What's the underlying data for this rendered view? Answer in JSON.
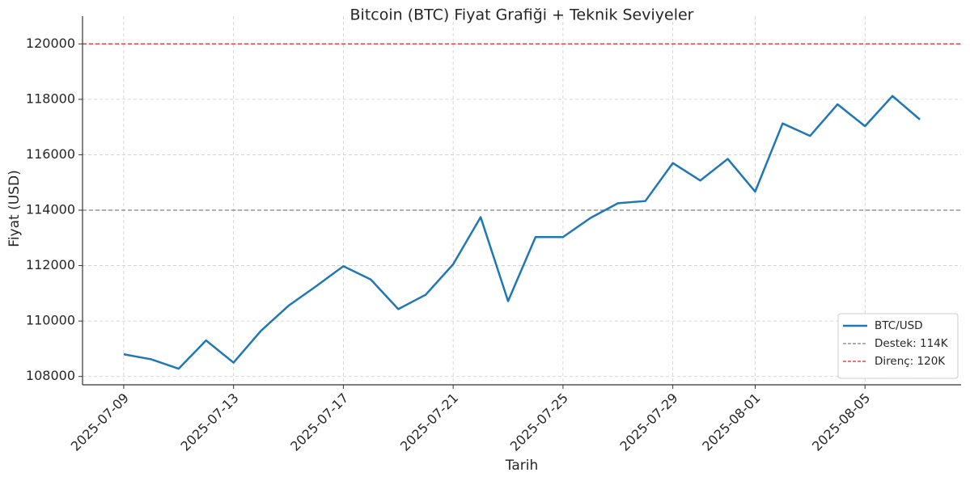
{
  "chart_data": {
    "type": "line",
    "title": "Bitcoin (BTC) Fiyat Grafiği + Teknik Seviyeler",
    "x_label": "Tarih",
    "y_label": "Fiyat (USD)",
    "x": [
      "2025-07-09",
      "2025-07-10",
      "2025-07-11",
      "2025-07-12",
      "2025-07-13",
      "2025-07-14",
      "2025-07-15",
      "2025-07-16",
      "2025-07-17",
      "2025-07-18",
      "2025-07-19",
      "2025-07-20",
      "2025-07-21",
      "2025-07-22",
      "2025-07-23",
      "2025-07-24",
      "2025-07-25",
      "2025-07-26",
      "2025-07-27",
      "2025-07-28",
      "2025-07-29",
      "2025-07-30",
      "2025-07-31",
      "2025-08-01",
      "2025-08-02",
      "2025-08-03",
      "2025-08-04",
      "2025-08-05",
      "2025-08-06",
      "2025-08-07"
    ],
    "series": [
      {
        "name": "BTC/USD",
        "color": "#1f77b4",
        "values": [
          108800,
          108620,
          108280,
          109300,
          108500,
          109650,
          110550,
          111250,
          111980,
          111500,
          110430,
          110950,
          112050,
          113750,
          110720,
          113030,
          113030,
          113720,
          114250,
          114330,
          115700,
          115070,
          115850,
          114670,
          117130,
          116680,
          117820,
          117030,
          118120,
          117270
        ]
      }
    ],
    "reference_lines": [
      {
        "name": "Destek: 114K",
        "value": 114000,
        "color": "#808080"
      },
      {
        "name": "Direnç: 120K",
        "value": 120000,
        "color": "#d62728"
      }
    ],
    "xlim": [
      "2025-07-07T12:00:00Z",
      "2025-08-08T12:00:00Z"
    ],
    "xticks": [
      "2025-07-09",
      "2025-07-13",
      "2025-07-17",
      "2025-07-21",
      "2025-07-25",
      "2025-07-29",
      "2025-08-01",
      "2025-08-05"
    ],
    "ylim": [
      107700,
      121000
    ],
    "yticks": [
      108000,
      110000,
      112000,
      114000,
      116000,
      118000,
      120000
    ],
    "grid": true,
    "legend": "lower right"
  }
}
